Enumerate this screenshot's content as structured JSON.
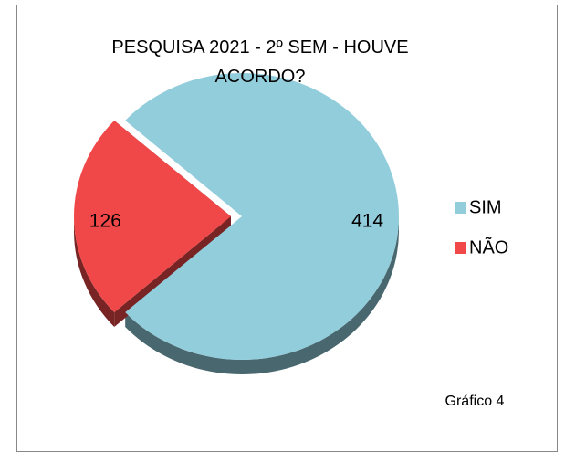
{
  "chart_data": {
    "type": "pie",
    "title": "PESQUISA 2021 - 2º SEM - HOUVE ACORDO?",
    "categories": [
      "SIM",
      "NÃO"
    ],
    "values": [
      414,
      126
    ],
    "colors": [
      "#92cddc",
      "#f04848"
    ],
    "legend": "right",
    "annotation": "Gráfico 4"
  }
}
